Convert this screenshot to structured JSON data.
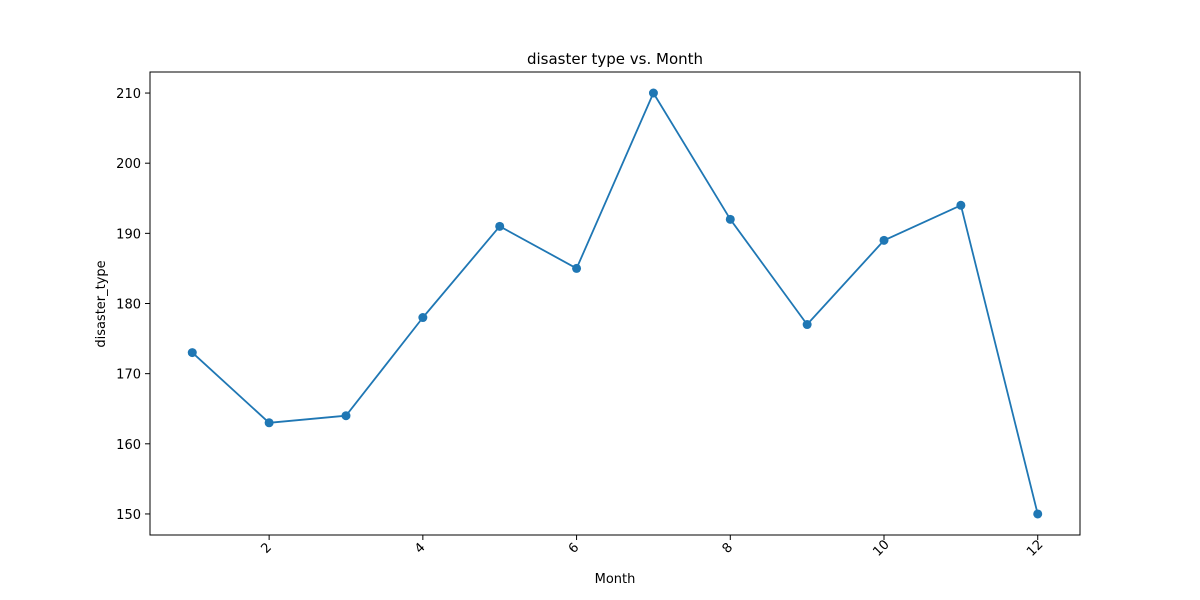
{
  "chart_data": {
    "type": "line",
    "title": "disaster type vs. Month",
    "xlabel": "Month",
    "ylabel": "disaster_type",
    "x": [
      1,
      2,
      3,
      4,
      5,
      6,
      7,
      8,
      9,
      10,
      11,
      12
    ],
    "series": [
      {
        "values": [
          173,
          163,
          164,
          178,
          191,
          185,
          210,
          192,
          177,
          189,
          194,
          150
        ]
      }
    ],
    "xlim": [
      0.45,
      12.55
    ],
    "ylim": [
      147,
      213
    ],
    "xticks": [
      2,
      4,
      6,
      8,
      10,
      12
    ],
    "yticks": [
      150,
      160,
      170,
      180,
      190,
      200,
      210
    ],
    "xtick_rotation": -45,
    "grid": false,
    "legend": "none",
    "markers": true,
    "color": "#1f77b4"
  }
}
